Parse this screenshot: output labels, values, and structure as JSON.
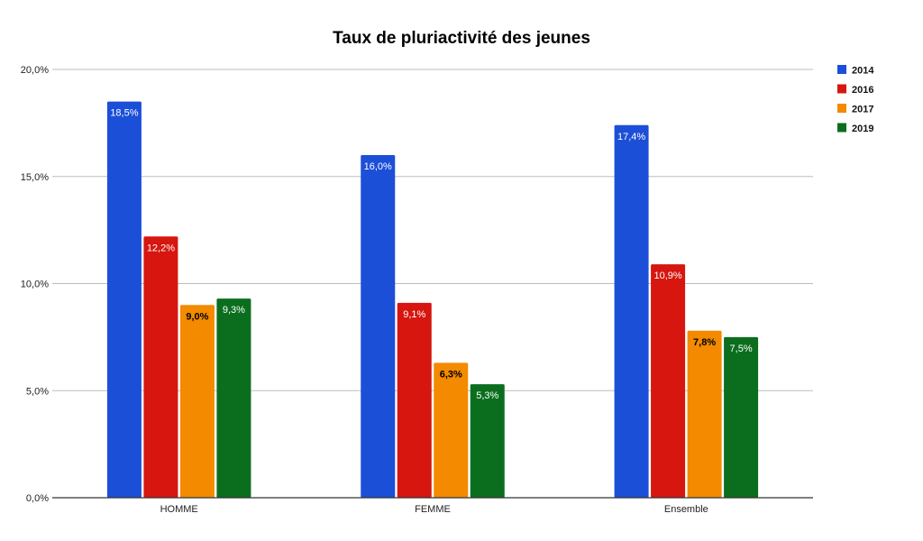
{
  "chart_data": {
    "type": "bar",
    "title": "Taux de pluriactivité des jeunes",
    "categories": [
      "HOMME",
      "FEMME",
      "Ensemble"
    ],
    "series": [
      {
        "name": "2014",
        "color": "#1c4fd8",
        "values": [
          18.5,
          16.0,
          17.4
        ],
        "labels": [
          "18,5%",
          "16,0%",
          "17,4%"
        ],
        "label_color": "#ffffff"
      },
      {
        "name": "2016",
        "color": "#d6160f",
        "values": [
          12.2,
          9.1,
          10.9
        ],
        "labels": [
          "12,2%",
          "9,1%",
          "10,9%"
        ],
        "label_color": "#ffffff"
      },
      {
        "name": "2017",
        "color": "#f38a00",
        "values": [
          9.0,
          6.3,
          7.8
        ],
        "labels": [
          "9,0%",
          "6,3%",
          "7,8%"
        ],
        "label_color": "#000000"
      },
      {
        "name": "2019",
        "color": "#0b6e1e",
        "values": [
          9.3,
          5.3,
          7.5
        ],
        "labels": [
          "9,3%",
          "5,3%",
          "7,5%"
        ],
        "label_color": "#ffffff"
      }
    ],
    "ylim": [
      0,
      20
    ],
    "yticks": [
      0,
      5,
      10,
      15,
      20
    ],
    "ytick_labels": [
      "0,0%",
      "5,0%",
      "10,0%",
      "15,0%",
      "20,0%"
    ],
    "grid": true,
    "legend_position": "top-right"
  }
}
